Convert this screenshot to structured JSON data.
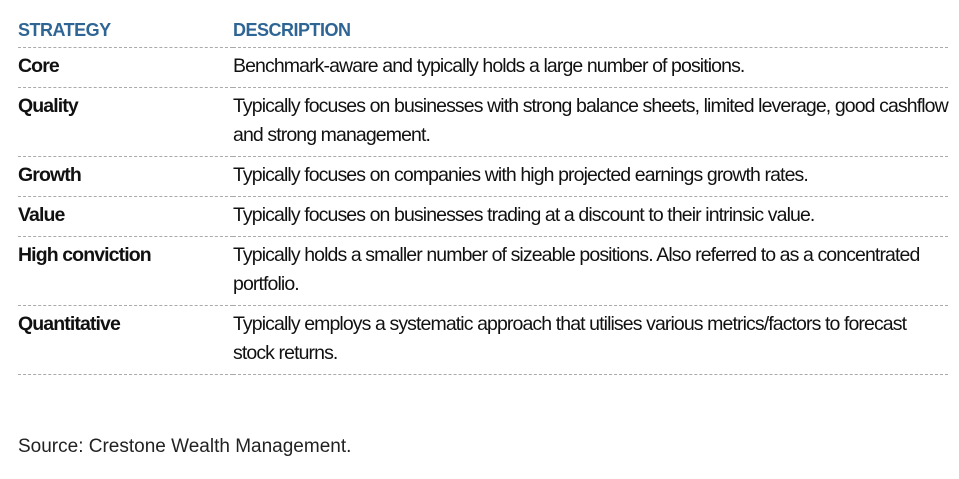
{
  "headers": {
    "strategy": "STRATEGY",
    "description": "DESCRIPTION"
  },
  "rows": [
    {
      "strategy": "Core",
      "description": "Benchmark-aware and typically holds a large number of positions."
    },
    {
      "strategy": "Quality",
      "description": "Typically focuses on businesses with strong balance sheets, limited leverage, good cashflow and strong management."
    },
    {
      "strategy": "Growth",
      "description": "Typically focuses on companies with high projected earnings growth rates."
    },
    {
      "strategy": "Value",
      "description": "Typically focuses on businesses trading at a discount to their intrinsic value."
    },
    {
      "strategy": "High conviction",
      "description": "Typically holds a smaller number of sizeable positions. Also referred to as a concentrated portfolio."
    },
    {
      "strategy": "Quantitative",
      "description": "Typically employs a systematic approach that utilises various metrics/factors to forecast stock returns."
    }
  ],
  "source": "Source: Crestone Wealth Management."
}
